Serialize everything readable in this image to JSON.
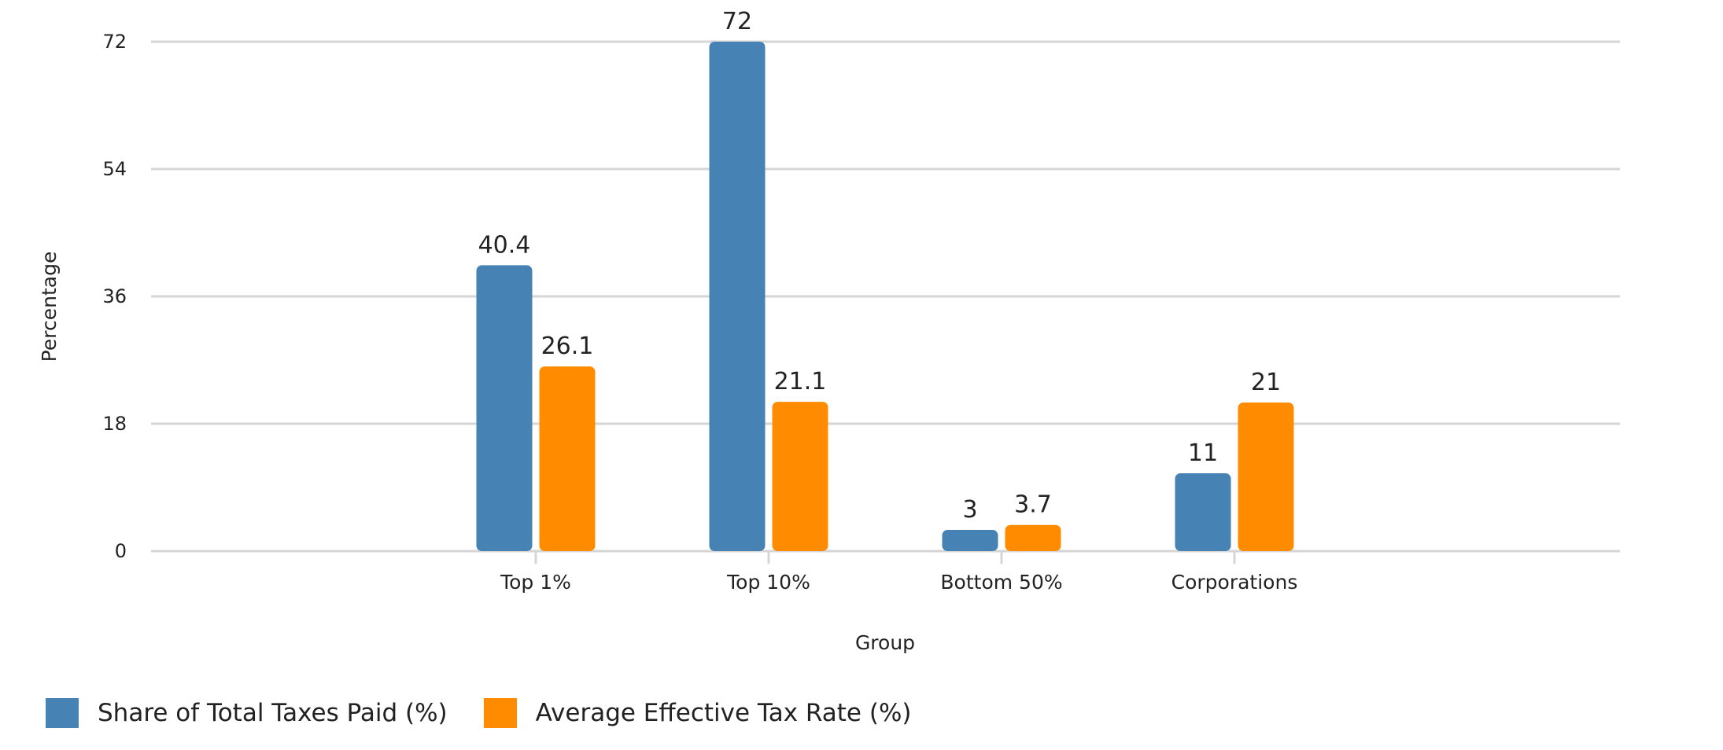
{
  "chart_data": {
    "type": "bar",
    "title": "",
    "xlabel": "Group",
    "ylabel": "Percentage",
    "categories": [
      "Top 1%",
      "Top 10%",
      "Bottom 50%",
      "Corporations"
    ],
    "series": [
      {
        "name": "Share of Total Taxes Paid (%)",
        "color": "#4682B4",
        "values": [
          40.4,
          72,
          3,
          11
        ]
      },
      {
        "name": "Average Effective Tax Rate (%)",
        "color": "#FF8C00",
        "values": [
          26.1,
          21.1,
          3.7,
          21
        ]
      }
    ],
    "ylim": [
      0,
      72
    ],
    "yticks": [
      0,
      18,
      36,
      54,
      72
    ],
    "grid": true,
    "legend_position": "bottom-left",
    "data_labels": true
  }
}
